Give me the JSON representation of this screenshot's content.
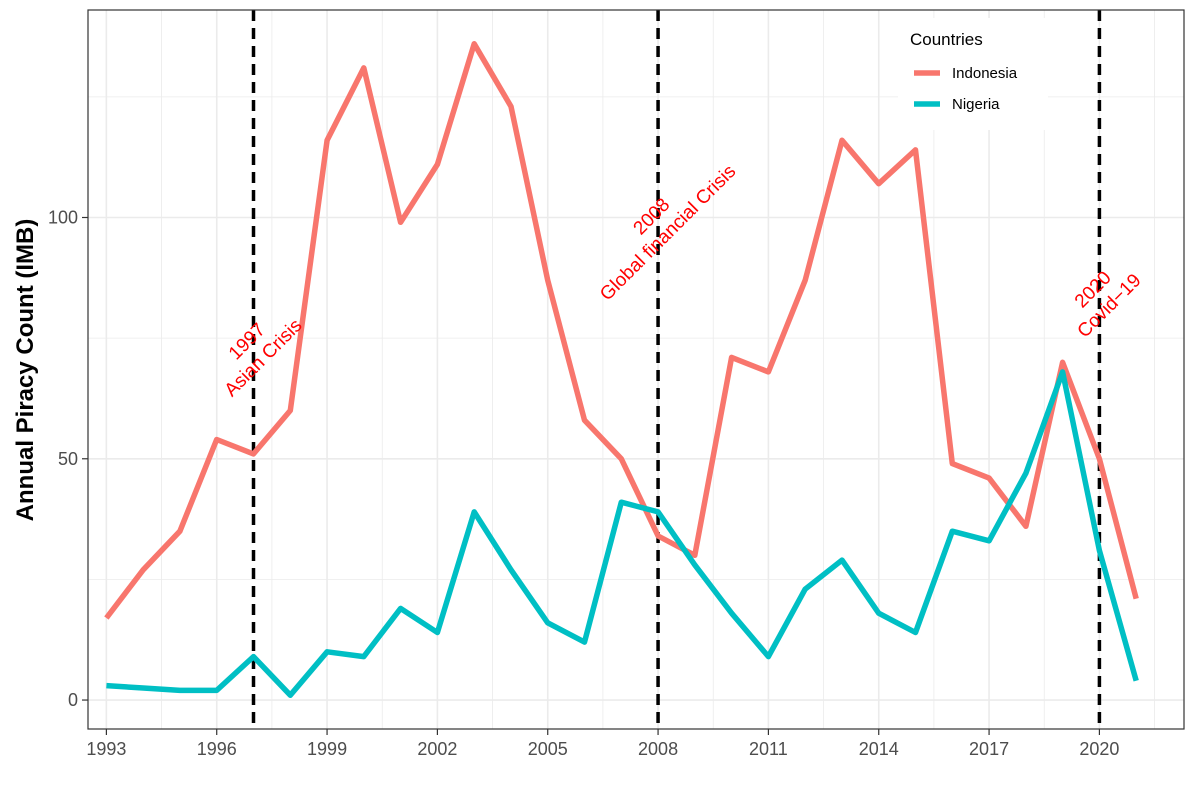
{
  "chart_data": {
    "type": "line",
    "title": "",
    "xlabel": "",
    "ylabel": "Annual Piracy Count (IMB)",
    "xlim": [
      1992.5,
      2022.3
    ],
    "ylim": [
      -6,
      143
    ],
    "x_ticks": [
      1993,
      1996,
      1999,
      2002,
      2005,
      2008,
      2011,
      2014,
      2017,
      2020
    ],
    "x_tick_labels": [
      "1993",
      "1996",
      "1999",
      "2002",
      "2005",
      "2008",
      "2011",
      "2014",
      "2017",
      "2020"
    ],
    "y_ticks": [
      0,
      50,
      100
    ],
    "y_tick_labels": [
      "0",
      "50",
      "100"
    ],
    "grid": true,
    "legend_position": "top-right",
    "legend": {
      "title": "Countries",
      "entries": [
        "Indonesia",
        "Nigeria"
      ]
    },
    "x": [
      1993,
      1994,
      1995,
      1996,
      1997,
      1998,
      1999,
      2000,
      2001,
      2002,
      2003,
      2004,
      2005,
      2006,
      2007,
      2008,
      2009,
      2010,
      2011,
      2012,
      2013,
      2014,
      2015,
      2016,
      2017,
      2018,
      2019,
      2020,
      2021
    ],
    "series": [
      {
        "name": "Indonesia",
        "color": "#f8766d",
        "values": [
          17,
          27,
          35,
          54,
          51,
          60,
          116,
          131,
          99,
          111,
          136,
          123,
          87,
          58,
          50,
          34,
          30,
          71,
          68,
          87,
          116,
          107,
          114,
          49,
          46,
          36,
          70,
          50,
          21
        ]
      },
      {
        "name": "Nigeria",
        "color": "#00bfc4",
        "values": [
          3,
          2.5,
          2,
          2,
          9,
          1,
          10,
          9,
          19,
          14,
          39,
          27,
          16,
          12,
          41,
          39,
          28,
          18,
          9,
          23,
          29,
          18,
          14,
          35,
          33,
          47,
          68,
          31,
          4
        ]
      }
    ],
    "events": [
      {
        "year": 1997,
        "label_year": "1997",
        "label_text": "Asian Crisis"
      },
      {
        "year": 2008,
        "label_year": "2008",
        "label_text": "Global financial Crisis"
      },
      {
        "year": 2020,
        "label_year": "2020",
        "label_text": "Covid−19"
      }
    ]
  }
}
